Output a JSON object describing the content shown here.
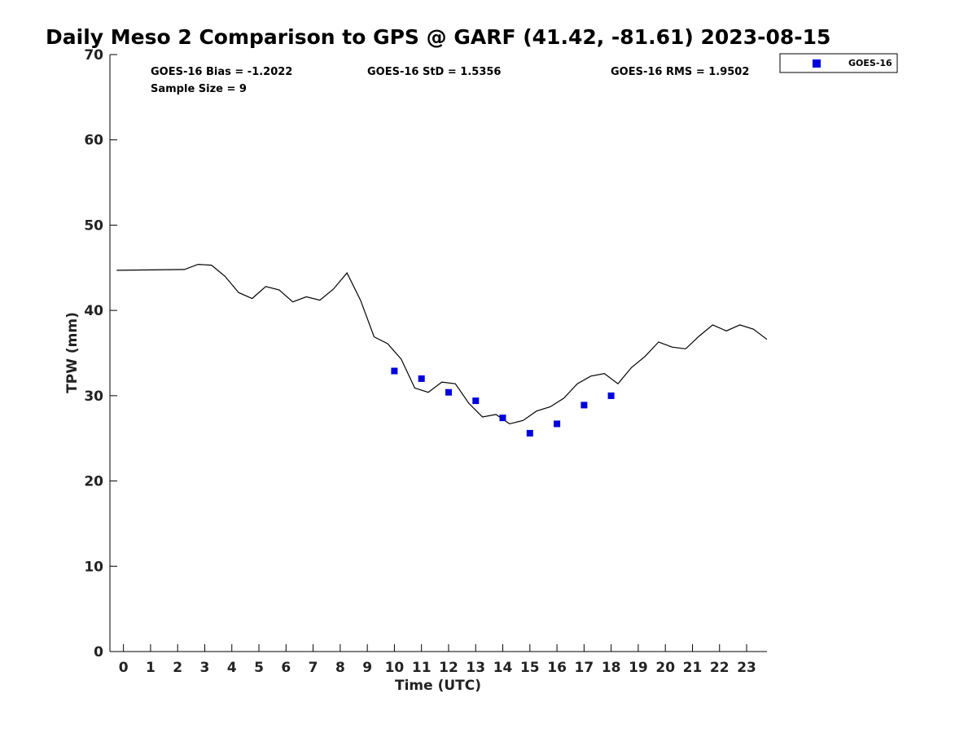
{
  "chart_data": {
    "type": "line",
    "title": "Daily Meso 2 Comparison to GPS @ GARF (41.42, -81.61) 2023-08-15",
    "xlabel": "Time (UTC)",
    "ylabel": "TPW (mm)",
    "xlim": [
      -0.5,
      23.75
    ],
    "ylim": [
      0,
      70
    ],
    "x_ticks": [
      0,
      1,
      2,
      3,
      4,
      5,
      6,
      7,
      8,
      9,
      10,
      11,
      12,
      13,
      14,
      15,
      16,
      17,
      18,
      19,
      20,
      21,
      22,
      23
    ],
    "y_ticks": [
      0,
      10,
      20,
      30,
      40,
      50,
      60,
      70
    ],
    "grid": false,
    "legend_position": "top-right",
    "stats": {
      "bias": "GOES-16 Bias = -1.2022",
      "std": "GOES-16 StD = 1.5356",
      "rms": "GOES-16 RMS = 1.9502",
      "sample_size": "Sample Size = 9"
    },
    "gps_line": {
      "color": "#000000",
      "x": [
        -0.25,
        2.25,
        2.75,
        3.25,
        3.75,
        4.25,
        4.75,
        5.25,
        5.75,
        6.25,
        6.75,
        7.25,
        7.75,
        8.25,
        8.75,
        9.25,
        9.75,
        10.25,
        10.75,
        11.25,
        11.75,
        12.25,
        12.75,
        13.25,
        13.75,
        14.25,
        14.75,
        15.25,
        15.75,
        16.25,
        16.75,
        17.25,
        17.75,
        18.25,
        18.75,
        19.25,
        19.75,
        20.25,
        20.75,
        21.25,
        21.75,
        22.25,
        22.75,
        23.25,
        23.75
      ],
      "y": [
        44.7,
        44.8,
        45.4,
        45.3,
        44.0,
        42.1,
        41.4,
        42.8,
        42.4,
        41.0,
        41.6,
        41.2,
        42.5,
        44.4,
        41.2,
        36.9,
        36.1,
        34.3,
        30.9,
        30.4,
        31.6,
        31.4,
        29.1,
        27.5,
        27.8,
        26.7,
        27.1,
        28.2,
        28.7,
        29.7,
        31.4,
        32.3,
        32.6,
        31.4,
        33.3,
        34.6,
        36.3,
        35.7,
        35.5,
        37.0,
        38.3,
        37.6,
        38.3,
        37.8,
        36.6
      ]
    },
    "series": [
      {
        "name": "GOES-16",
        "color": "#0000dd",
        "marker": "square",
        "x": [
          10,
          11,
          12,
          13,
          14,
          15,
          16,
          17,
          18
        ],
        "y": [
          32.9,
          32.0,
          30.4,
          29.4,
          27.4,
          25.6,
          26.7,
          28.9,
          30.0
        ]
      }
    ]
  }
}
